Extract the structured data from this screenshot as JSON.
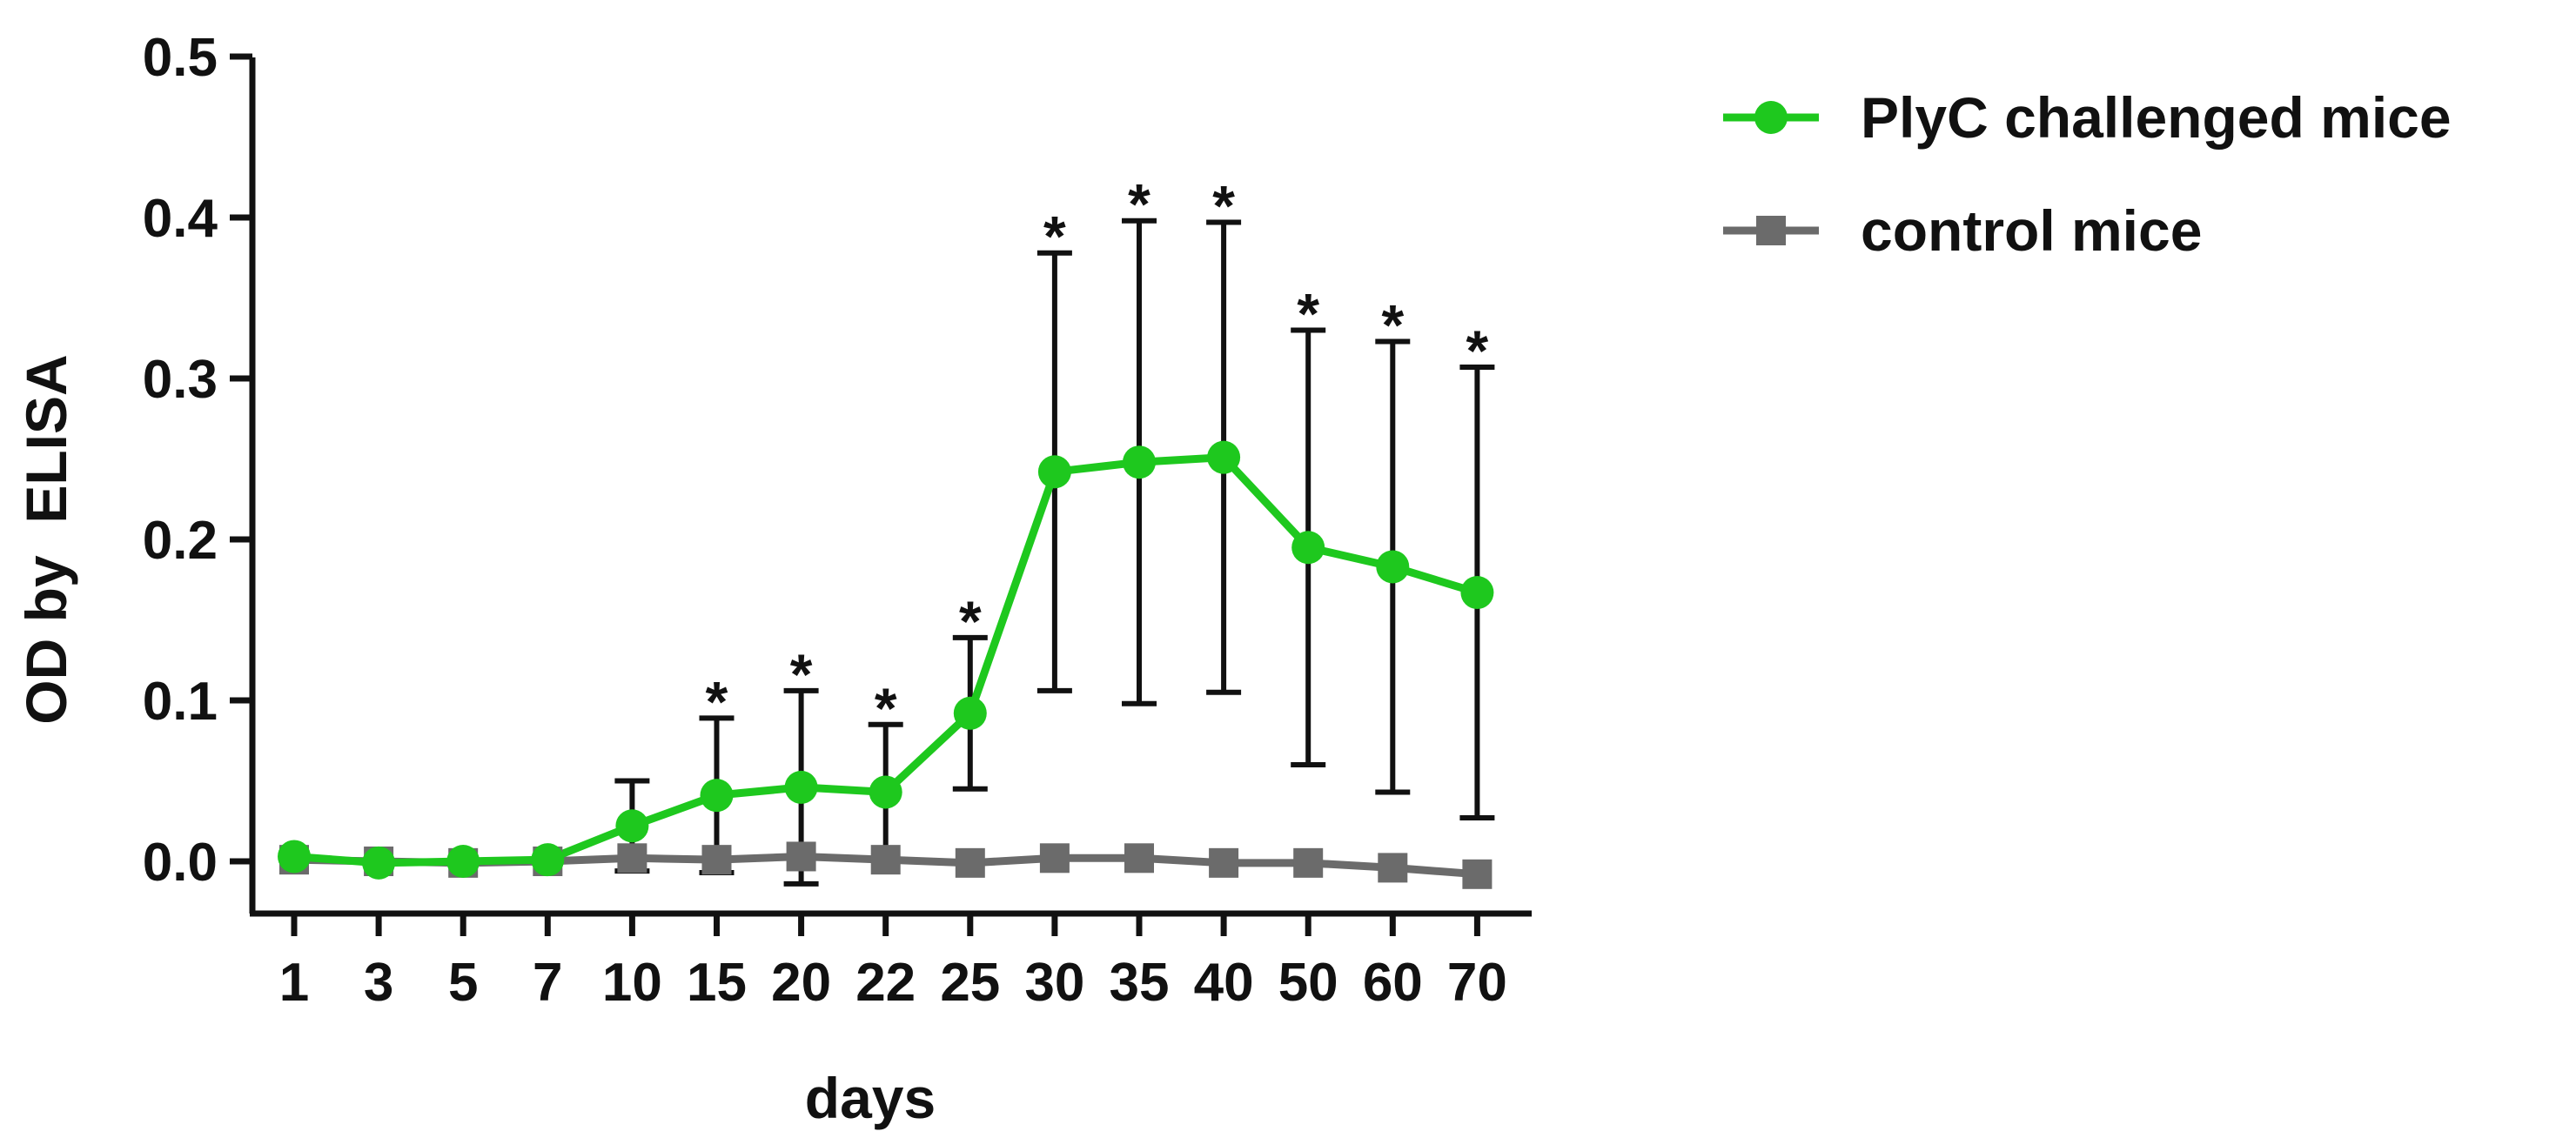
{
  "chart_data": {
    "type": "line",
    "title": "",
    "xlabel": "days",
    "ylabel": "OD by  ELISA",
    "categories": [
      "1",
      "3",
      "5",
      "7",
      "10",
      "15",
      "20",
      "22",
      "25",
      "30",
      "35",
      "40",
      "50",
      "60",
      "70"
    ],
    "ylim": [
      0,
      0.5
    ],
    "yticks": [
      "0.0",
      "0.1",
      "0.2",
      "0.3",
      "0.4",
      "0.5"
    ],
    "grid": false,
    "legend_position": "top-right",
    "significance_marker": "*",
    "series": [
      {
        "name": "PlyC challenged mice",
        "color": "#1ec81e",
        "marker": "circle",
        "values": [
          0.003,
          -0.001,
          0.0,
          0.001,
          0.022,
          0.041,
          0.046,
          0.043,
          0.092,
          0.242,
          0.248,
          0.251,
          0.195,
          0.183,
          0.167
        ],
        "error": [
          null,
          null,
          null,
          null,
          0.028,
          0.048,
          0.06,
          0.042,
          0.047,
          0.136,
          0.15,
          0.146,
          0.135,
          0.14,
          0.14
        ],
        "significant": [
          false,
          false,
          false,
          false,
          false,
          true,
          true,
          true,
          true,
          true,
          true,
          true,
          true,
          true,
          true
        ]
      },
      {
        "name": "control mice",
        "color": "#6b6b6b",
        "marker": "square",
        "values": [
          0.001,
          0.0,
          -0.001,
          0.0,
          0.002,
          0.001,
          0.003,
          0.001,
          -0.001,
          0.002,
          0.002,
          -0.001,
          -0.001,
          -0.004,
          -0.008
        ],
        "error": [
          null,
          null,
          null,
          null,
          null,
          null,
          null,
          null,
          null,
          null,
          null,
          null,
          null,
          null,
          null
        ]
      }
    ]
  }
}
